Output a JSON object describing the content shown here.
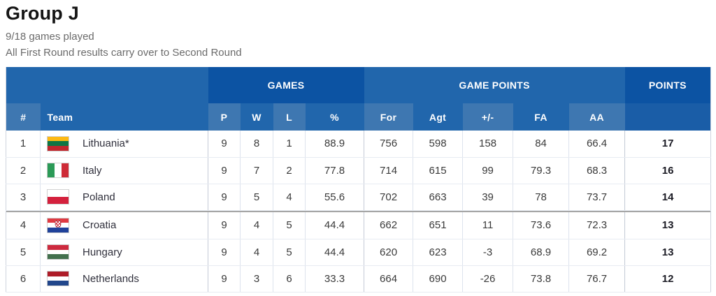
{
  "page": {
    "title": "Group J",
    "subtitle1": "9/18 games played",
    "subtitle2": "All First Round results carry over to Second Round"
  },
  "table": {
    "group_headers": {
      "games": "GAMES",
      "game_points": "GAME POINTS",
      "points": "POINTS"
    },
    "columns": {
      "pos": "#",
      "team": "Team",
      "p": "P",
      "w": "W",
      "l": "L",
      "pct": "%",
      "for": "For",
      "agt": "Agt",
      "plus_minus": "+/-",
      "fa": "FA",
      "aa": "AA"
    },
    "colors": {
      "header_dark": "#0c53a3",
      "header_medium": "#2166ac",
      "header_light": "#3e77b1",
      "points_subcell": "#1a5da7",
      "cutoff_line": "#a6a6a6"
    },
    "qualification_cutoff_after_row": 3,
    "rows": [
      {
        "pos": "1",
        "team": "Lithuania*",
        "p": "9",
        "w": "8",
        "l": "1",
        "pct": "88.9",
        "for": "756",
        "agt": "598",
        "pm": "158",
        "fa": "84",
        "aa": "66.4",
        "pts": "17",
        "flag": {
          "name": "lithuania-flag",
          "orientation": "h",
          "stripes": [
            "#fdb913",
            "#0e7544",
            "#c1272d"
          ]
        }
      },
      {
        "pos": "2",
        "team": "Italy",
        "p": "9",
        "w": "7",
        "l": "2",
        "pct": "77.8",
        "for": "714",
        "agt": "615",
        "pm": "99",
        "fa": "79.3",
        "aa": "68.3",
        "pts": "16",
        "flag": {
          "name": "italy-flag",
          "orientation": "v",
          "stripes": [
            "#2b9a57",
            "#ffffff",
            "#ce2b37"
          ]
        }
      },
      {
        "pos": "3",
        "team": "Poland",
        "p": "9",
        "w": "5",
        "l": "4",
        "pct": "55.6",
        "for": "702",
        "agt": "663",
        "pm": "39",
        "fa": "78",
        "aa": "73.7",
        "pts": "14",
        "flag": {
          "name": "poland-flag",
          "orientation": "h",
          "stripes": [
            "#ffffff",
            "#d4213d"
          ]
        }
      },
      {
        "pos": "4",
        "team": "Croatia",
        "p": "9",
        "w": "4",
        "l": "5",
        "pct": "44.4",
        "for": "662",
        "agt": "651",
        "pm": "11",
        "fa": "73.6",
        "aa": "72.3",
        "pts": "13",
        "flag": {
          "name": "croatia-flag",
          "orientation": "h",
          "emblem": true,
          "stripes": [
            "#e03a42",
            "#ffffff",
            "#20429a"
          ]
        }
      },
      {
        "pos": "5",
        "team": "Hungary",
        "p": "9",
        "w": "4",
        "l": "5",
        "pct": "44.4",
        "for": "620",
        "agt": "623",
        "pm": "-3",
        "fa": "68.9",
        "aa": "69.2",
        "pts": "13",
        "flag": {
          "name": "hungary-flag",
          "orientation": "h",
          "stripes": [
            "#cd2a3e",
            "#ffffff",
            "#43704d"
          ]
        }
      },
      {
        "pos": "6",
        "team": "Netherlands",
        "p": "9",
        "w": "3",
        "l": "6",
        "pct": "33.3",
        "for": "664",
        "agt": "690",
        "pm": "-26",
        "fa": "73.8",
        "aa": "76.7",
        "pts": "12",
        "flag": {
          "name": "netherlands-flag",
          "orientation": "h",
          "stripes": [
            "#ae1c28",
            "#ffffff",
            "#21468b"
          ]
        }
      }
    ]
  }
}
